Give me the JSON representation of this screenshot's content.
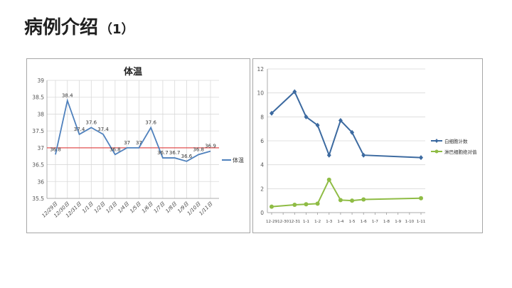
{
  "slide": {
    "title": "病例介绍",
    "title_suffix": "（1）"
  },
  "chart_data": [
    {
      "type": "line",
      "title": "体温",
      "categories": [
        "12/29日",
        "12/30日",
        "12/31日",
        "1/1日",
        "1/2日",
        "1/3日",
        "1/4日",
        "1/5日",
        "1/6日",
        "1/7日",
        "1/8日",
        "1/9日",
        "1/10日",
        "1/11日"
      ],
      "series": [
        {
          "name": "体温",
          "color": "#4f81bd",
          "values": [
            36.8,
            38.4,
            37.4,
            37.6,
            37.4,
            36.8,
            37,
            37,
            37.6,
            36.7,
            36.7,
            36.6,
            36.8,
            36.9
          ]
        }
      ],
      "reference_line": {
        "value": 37,
        "color": "#e05050"
      },
      "ylim": [
        35.5,
        39
      ],
      "yticks": [
        35.5,
        36,
        36.5,
        37,
        37.5,
        38,
        38.5,
        39
      ],
      "grid": true,
      "legend": "right"
    },
    {
      "type": "line",
      "title": "",
      "categories": [
        "12-29",
        "12-30",
        "12-31",
        "1-1",
        "1-2",
        "1-3",
        "1-4",
        "1-5",
        "1-6",
        "1-7",
        "1-8",
        "1-9",
        "1-10",
        "1-11"
      ],
      "series": [
        {
          "name": "白细胞计数",
          "color": "#3c6aa0",
          "points": [
            [
              0,
              8.3
            ],
            [
              2,
              10.1
            ],
            [
              3,
              8
            ],
            [
              4,
              7.3
            ],
            [
              5,
              4.8
            ],
            [
              6,
              7.7
            ],
            [
              7,
              6.7
            ],
            [
              8,
              4.8
            ],
            [
              13,
              4.6
            ]
          ]
        },
        {
          "name": "淋巴细胞绝对值",
          "color": "#8fbc45",
          "points": [
            [
              0,
              0.5
            ],
            [
              2,
              0.65
            ],
            [
              3,
              0.7
            ],
            [
              4,
              0.75
            ],
            [
              5,
              2.75
            ],
            [
              6,
              1.05
            ],
            [
              7,
              1
            ],
            [
              8,
              1.1
            ],
            [
              13,
              1.2
            ]
          ]
        }
      ],
      "ylim": [
        0,
        12
      ],
      "yticks": [
        0,
        2,
        4,
        6,
        8,
        10,
        12
      ],
      "grid": true,
      "legend": "right"
    }
  ]
}
